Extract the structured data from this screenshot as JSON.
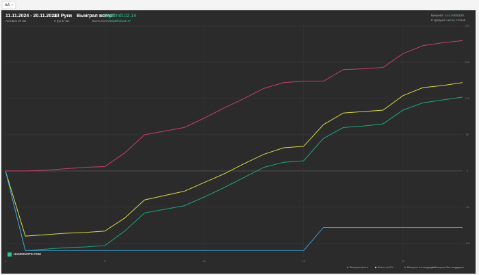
{
  "tab": {
    "label": "AA"
  },
  "header": {
    "date_range": "11.11.2024 - 20.11.2024",
    "active": "Активно 0ч 0м",
    "hands": "23 Руки",
    "hands_per_hour": "0 рук в час",
    "won_label": "Выиграл всего:",
    "won_value": "BigBlind102.14",
    "ev_label": "Всего по EV:",
    "ev_value": "BigBlind121.47",
    "winrate_label": "Винрейт:",
    "winrate_value": "444.09",
    "winrate_unit": "bb/100",
    "tables": "0 среднее число столов"
  },
  "logo": "HAND2NOTE.COM",
  "chart_data": {
    "type": "line",
    "x": [
      0,
      1,
      2,
      3,
      4,
      5,
      6,
      7,
      8,
      9,
      10,
      11,
      12,
      13,
      14,
      15,
      16,
      17,
      18,
      19,
      20,
      21,
      22,
      23
    ],
    "xlim": [
      0,
      23
    ],
    "xticks": [
      0,
      5,
      10,
      15,
      20
    ],
    "ylim": [
      -121,
      203
    ],
    "yticks": [
      -100,
      -50,
      0,
      50,
      100,
      150,
      200
    ],
    "grid": true,
    "legend": "bottom-right",
    "series": [
      {
        "name": "Выиграл всего",
        "color": "#20a57c",
        "values": [
          0,
          -110,
          -108,
          -106,
          -105,
          -103,
          -83,
          -58,
          -53,
          -48,
          -36,
          -23,
          -9,
          5,
          12,
          14,
          45,
          60,
          62,
          65,
          84,
          94,
          98,
          102
        ]
      },
      {
        "name": "Всего по EV",
        "color": "#d9d94c",
        "values": [
          0,
          -90,
          -88,
          -86,
          -85,
          -83,
          -65,
          -40,
          -34,
          -28,
          -16,
          -4,
          10,
          23,
          32,
          34,
          64,
          80,
          82,
          84,
          104,
          115,
          118,
          122
        ]
      },
      {
        "name": "Выиграл на шоудауне",
        "color": "#c8406a",
        "values": [
          0,
          0,
          1,
          3,
          5,
          6,
          25,
          50,
          55,
          60,
          73,
          87,
          100,
          114,
          122,
          124,
          124,
          140,
          141,
          143,
          162,
          173,
          177,
          180
        ]
      },
      {
        "name": "Выиграл без шоудауна",
        "color": "#3b9ad9",
        "values": [
          0,
          -110,
          -110,
          -110,
          -110,
          -110,
          -110,
          -110,
          -110,
          -110,
          -110,
          -110,
          -110,
          -110,
          -110,
          -110,
          -78,
          -78,
          -78,
          -78,
          -78,
          -78,
          -78,
          -78
        ]
      }
    ]
  }
}
